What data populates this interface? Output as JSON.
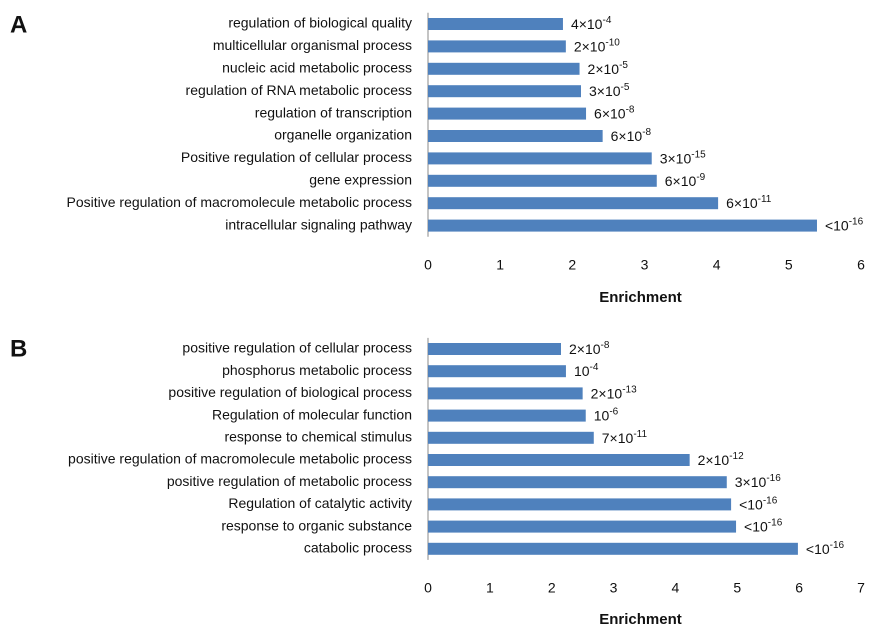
{
  "chart_data": [
    {
      "type": "bar",
      "orientation": "horizontal",
      "panel": "A",
      "color": "#4f81bd",
      "categories": [
        "regulation of biological quality",
        "multicellular organismal process",
        "nucleic acid metabolic process",
        "regulation of RNA metabolic process",
        "regulation of transcription",
        "organelle organization",
        "Positive regulation of cellular process",
        "gene expression",
        "Positive regulation of macromolecule metabolic process",
        "intracellular signaling pathway"
      ],
      "values": [
        1.87,
        1.91,
        2.1,
        2.12,
        2.19,
        2.42,
        3.1,
        3.17,
        4.02,
        5.39
      ],
      "annotations": [
        {
          "text": "4×10",
          "sup": "-4"
        },
        {
          "text": "2×10",
          "sup": "-10"
        },
        {
          "text": "2×10",
          "sup": "-5"
        },
        {
          "text": "3×10",
          "sup": "-5"
        },
        {
          "text": "6×10",
          "sup": "-8"
        },
        {
          "text": "6×10",
          "sup": "-8"
        },
        {
          "text": "3×10",
          "sup": "-15"
        },
        {
          "text": "6×10",
          "sup": "-9"
        },
        {
          "text": "6×10",
          "sup": "-11"
        },
        {
          "text": "<10",
          "sup": "-16"
        }
      ],
      "xlabel": "Enrichment",
      "xlim": [
        0,
        6
      ],
      "xticks": [
        0,
        1,
        2,
        3,
        4,
        5,
        6
      ]
    },
    {
      "type": "bar",
      "orientation": "horizontal",
      "panel": "B",
      "color": "#4f81bd",
      "categories": [
        "positive regulation of cellular process",
        "phosphorus metabolic process",
        "positive regulation of biological process",
        "Regulation of molecular function",
        "response to chemical stimulus",
        "positive regulation of macromolecule metabolic process",
        "positive regulation of metabolic process",
        "Regulation of catalytic activity",
        "response to organic substance",
        "catabolic process"
      ],
      "values": [
        2.15,
        2.23,
        2.5,
        2.55,
        2.68,
        4.23,
        4.83,
        4.9,
        4.98,
        5.98
      ],
      "annotations": [
        {
          "text": "2×10",
          "sup": "-8"
        },
        {
          "text": "10",
          "sup": "-4"
        },
        {
          "text": "2×10",
          "sup": "-13"
        },
        {
          "text": "10",
          "sup": "-6"
        },
        {
          "text": "7×10",
          "sup": "-11"
        },
        {
          "text": "2×10",
          "sup": "-12"
        },
        {
          "text": "3×10",
          "sup": "-16"
        },
        {
          "text": "<10",
          "sup": "-16"
        },
        {
          "text": "<10",
          "sup": "-16"
        },
        {
          "text": "<10",
          "sup": "-16"
        }
      ],
      "xlabel": "Enrichment",
      "xlim": [
        0,
        7
      ],
      "xticks": [
        0,
        1,
        2,
        3,
        4,
        5,
        6,
        7
      ]
    }
  ]
}
